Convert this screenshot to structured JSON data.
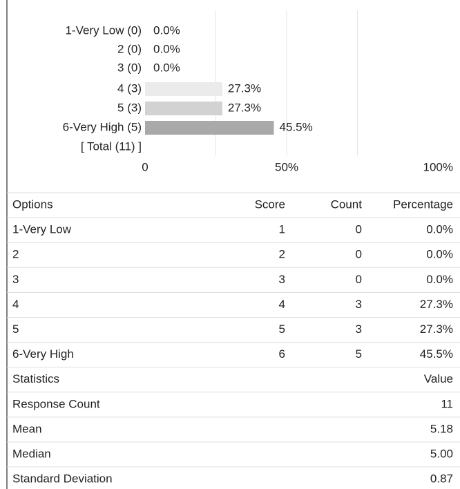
{
  "chart_data": {
    "type": "bar",
    "orientation": "horizontal",
    "categories": [
      "1-Very Low (0)",
      "2 (0)",
      "3 (0)",
      "4 (3)",
      "5 (3)",
      "6-Very High (5)"
    ],
    "values": [
      0,
      0,
      0,
      27.3,
      27.3,
      45.5
    ],
    "value_labels": [
      "0.0%",
      "0.0%",
      "0.0%",
      "27.3%",
      "27.3%",
      "45.5%"
    ],
    "colors": [
      "#e8e8e8",
      "#e8e8e8",
      "#e8e8e8",
      "#ebebeb",
      "#d2d2d2",
      "#a9a9a9"
    ],
    "total_label": "[ Total (11) ]",
    "xlim": [
      0,
      100
    ],
    "xticks": [
      0,
      {
        "value": 50,
        "label": "50%"
      },
      {
        "value": 100,
        "label": "100%"
      }
    ],
    "gridlines": [
      25,
      50,
      75
    ]
  },
  "options_table": {
    "header": [
      "Options",
      "Score",
      "Count",
      "Percentage"
    ],
    "rows": [
      [
        "1-Very Low",
        "1",
        "0",
        "0.0%"
      ],
      [
        "2",
        "2",
        "0",
        "0.0%"
      ],
      [
        "3",
        "3",
        "0",
        "0.0%"
      ],
      [
        "4",
        "4",
        "3",
        "27.3%"
      ],
      [
        "5",
        "5",
        "3",
        "27.3%"
      ],
      [
        "6-Very High",
        "6",
        "5",
        "45.5%"
      ]
    ]
  },
  "statistics_table": {
    "header": [
      "Statistics",
      "Value"
    ],
    "rows": [
      [
        "Response Count",
        "11"
      ],
      [
        "Mean",
        "5.18"
      ],
      [
        "Median",
        "5.00"
      ],
      [
        "Standard Deviation",
        "0.87"
      ]
    ]
  }
}
